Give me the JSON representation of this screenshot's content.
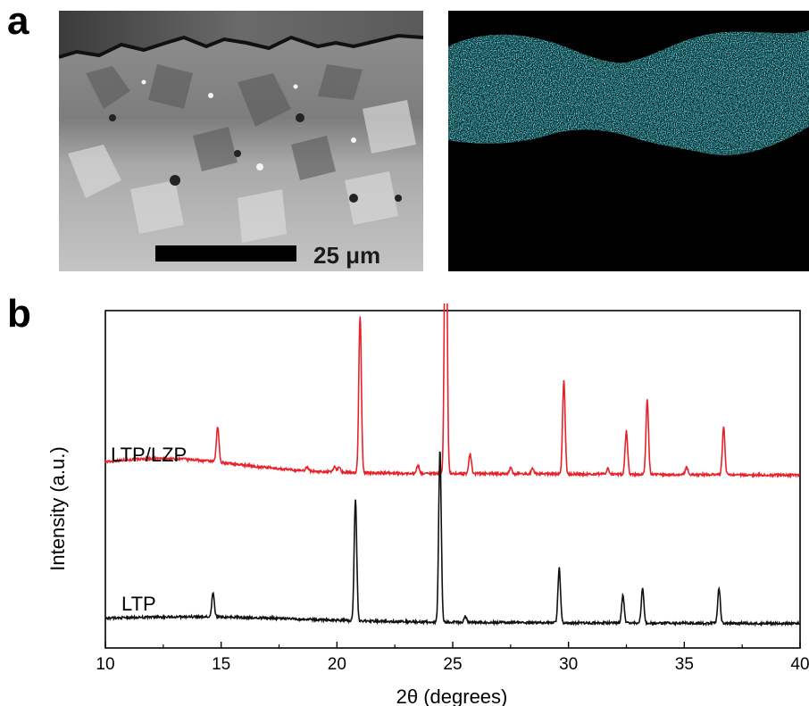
{
  "panels": {
    "a": {
      "label": "a",
      "scale_bar_text": "25 μm",
      "map_color": "#29c7d9"
    },
    "b": {
      "label": "b"
    }
  },
  "chart_data": {
    "type": "line",
    "title": "",
    "xlabel": "2θ (degrees)",
    "ylabel": "Intensity (a.u.)",
    "xlim": [
      10,
      40
    ],
    "xticks": [
      10,
      15,
      20,
      25,
      30,
      35,
      40
    ],
    "grid": false,
    "series": [
      {
        "name": "LTP/LZP",
        "color": "#e8222a",
        "baseline": 0.38,
        "peaks": [
          {
            "x": 14.85,
            "h": 0.09
          },
          {
            "x": 18.7,
            "h": 0.01
          },
          {
            "x": 19.9,
            "h": 0.015
          },
          {
            "x": 20.1,
            "h": 0.015
          },
          {
            "x": 21.0,
            "h": 0.4
          },
          {
            "x": 23.5,
            "h": 0.02
          },
          {
            "x": 24.7,
            "h": 0.84
          },
          {
            "x": 25.75,
            "h": 0.05
          },
          {
            "x": 27.5,
            "h": 0.015
          },
          {
            "x": 28.45,
            "h": 0.015
          },
          {
            "x": 29.8,
            "h": 0.24
          },
          {
            "x": 31.7,
            "h": 0.015
          },
          {
            "x": 32.5,
            "h": 0.11
          },
          {
            "x": 33.4,
            "h": 0.19
          },
          {
            "x": 35.1,
            "h": 0.02
          },
          {
            "x": 36.7,
            "h": 0.12
          }
        ]
      },
      {
        "name": "LTP",
        "color": "#111111",
        "baseline": 0.0,
        "peaks": [
          {
            "x": 14.65,
            "h": 0.06
          },
          {
            "x": 20.8,
            "h": 0.31
          },
          {
            "x": 24.45,
            "h": 0.44
          },
          {
            "x": 25.55,
            "h": 0.015
          },
          {
            "x": 29.6,
            "h": 0.14
          },
          {
            "x": 32.35,
            "h": 0.07
          },
          {
            "x": 33.2,
            "h": 0.09
          },
          {
            "x": 36.5,
            "h": 0.09
          }
        ]
      }
    ]
  }
}
